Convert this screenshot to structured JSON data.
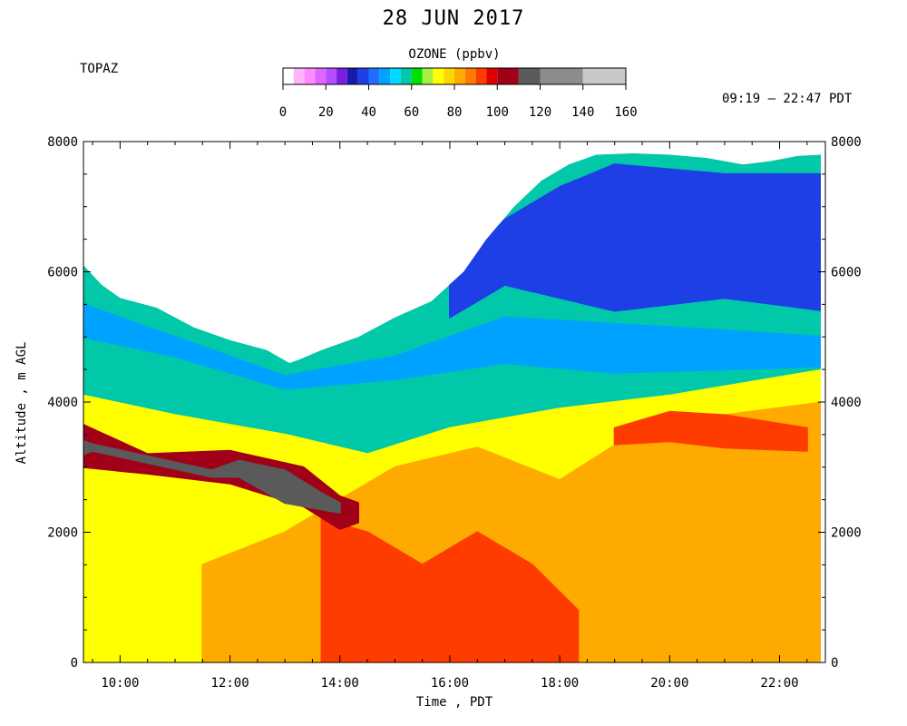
{
  "chart_data": {
    "type": "heatmap",
    "title": "28 JUN 2017",
    "station": "TOPAZ",
    "time_range": "09:19 – 22:47 PDT",
    "colorbar": {
      "title": "OZONE (ppbv)",
      "ticks": [
        0,
        20,
        40,
        60,
        80,
        100,
        120,
        140,
        160
      ],
      "bins": [
        {
          "from": 0,
          "to": 5,
          "color": "#ffffff"
        },
        {
          "from": 5,
          "to": 10,
          "color": "#ffb3ff"
        },
        {
          "from": 10,
          "to": 15,
          "color": "#ff8cff"
        },
        {
          "from": 15,
          "to": 20,
          "color": "#e066ff"
        },
        {
          "from": 20,
          "to": 25,
          "color": "#b34dff"
        },
        {
          "from": 25,
          "to": 30,
          "color": "#7a1fe0"
        },
        {
          "from": 30,
          "to": 35,
          "color": "#1a1aa8"
        },
        {
          "from": 35,
          "to": 40,
          "color": "#1f3fe6"
        },
        {
          "from": 40,
          "to": 45,
          "color": "#1f6fff"
        },
        {
          "from": 45,
          "to": 50,
          "color": "#00a2ff"
        },
        {
          "from": 50,
          "to": 55,
          "color": "#00d8ff"
        },
        {
          "from": 55,
          "to": 60,
          "color": "#00c8a8"
        },
        {
          "from": 60,
          "to": 65,
          "color": "#00e000"
        },
        {
          "from": 65,
          "to": 70,
          "color": "#a8f040"
        },
        {
          "from": 70,
          "to": 75,
          "color": "#ffff00"
        },
        {
          "from": 75,
          "to": 80,
          "color": "#ffd700"
        },
        {
          "from": 80,
          "to": 85,
          "color": "#ffaa00"
        },
        {
          "from": 85,
          "to": 90,
          "color": "#ff7a00"
        },
        {
          "from": 90,
          "to": 95,
          "color": "#ff3c00"
        },
        {
          "from": 95,
          "to": 100,
          "color": "#e00000"
        },
        {
          "from": 100,
          "to": 110,
          "color": "#a00018"
        },
        {
          "from": 110,
          "to": 120,
          "color": "#5a5a5a"
        },
        {
          "from": 120,
          "to": 140,
          "color": "#8c8c8c"
        },
        {
          "from": 140,
          "to": 160,
          "color": "#c8c8c8"
        }
      ]
    },
    "x": {
      "label": "Time , PDT",
      "range": [
        "09:20",
        "22:50"
      ],
      "tick_labels": [
        "10:00",
        "12:00",
        "14:00",
        "16:00",
        "18:00",
        "20:00",
        "22:00"
      ]
    },
    "y": {
      "label": "Altitude , m AGL",
      "range": [
        0,
        8000
      ],
      "tick_labels": [
        0,
        2000,
        4000,
        6000,
        8000
      ]
    },
    "data_top_altitude": [
      {
        "time": "09:20",
        "alt": 6100
      },
      {
        "time": "09:40",
        "alt": 5800
      },
      {
        "time": "10:00",
        "alt": 5600
      },
      {
        "time": "10:40",
        "alt": 5450
      },
      {
        "time": "11:20",
        "alt": 5150
      },
      {
        "time": "12:00",
        "alt": 4950
      },
      {
        "time": "12:40",
        "alt": 4800
      },
      {
        "time": "13:05",
        "alt": 4600
      },
      {
        "time": "13:15",
        "alt": 4650
      },
      {
        "time": "13:40",
        "alt": 4800
      },
      {
        "time": "14:20",
        "alt": 5000
      },
      {
        "time": "15:00",
        "alt": 5300
      },
      {
        "time": "15:40",
        "alt": 5550
      },
      {
        "time": "16:15",
        "alt": 6000
      },
      {
        "time": "16:40",
        "alt": 6500
      },
      {
        "time": "17:10",
        "alt": 7000
      },
      {
        "time": "17:40",
        "alt": 7400
      },
      {
        "time": "18:10",
        "alt": 7650
      },
      {
        "time": "18:40",
        "alt": 7800
      },
      {
        "time": "19:20",
        "alt": 7820
      },
      {
        "time": "20:00",
        "alt": 7800
      },
      {
        "time": "20:40",
        "alt": 7750
      },
      {
        "time": "21:20",
        "alt": 7650
      },
      {
        "time": "21:50",
        "alt": 7700
      },
      {
        "time": "22:20",
        "alt": 7780
      },
      {
        "time": "22:45",
        "alt": 7800
      }
    ],
    "layers": [
      {
        "ppbv": 47,
        "upper": [
          [
            "09:20",
            5500
          ],
          [
            "11:00",
            5000
          ],
          [
            "13:00",
            4400
          ],
          [
            "15:00",
            4700
          ],
          [
            "17:00",
            5300
          ],
          [
            "19:00",
            5200
          ],
          [
            "21:00",
            5100
          ],
          [
            "22:50",
            5000
          ]
        ],
        "lower": [
          [
            "09:20",
            5000
          ],
          [
            "11:00",
            4700
          ],
          [
            "13:00",
            4200
          ],
          [
            "15:00",
            4350
          ],
          [
            "17:00",
            4600
          ],
          [
            "19:00",
            4450
          ],
          [
            "21:00",
            4500
          ],
          [
            "22:50",
            4550
          ]
        ]
      },
      {
        "ppbv": 38,
        "upper": [
          [
            "16:00",
            5900
          ],
          [
            "17:00",
            6800
          ],
          [
            "18:00",
            7300
          ],
          [
            "19:00",
            7650
          ],
          [
            "21:00",
            7500
          ],
          [
            "22:50",
            7500
          ]
        ],
        "lower": [
          [
            "16:00",
            5300
          ],
          [
            "17:00",
            5800
          ],
          [
            "18:00",
            5600
          ],
          [
            "19:00",
            5400
          ],
          [
            "21:00",
            5600
          ],
          [
            "22:50",
            5400
          ]
        ]
      },
      {
        "ppbv": 72,
        "upper": [
          [
            "09:20",
            4100
          ],
          [
            "11:00",
            3800
          ],
          [
            "13:00",
            3500
          ],
          [
            "14:30",
            3200
          ],
          [
            "16:00",
            3600
          ],
          [
            "18:00",
            3900
          ],
          [
            "20:00",
            4100
          ],
          [
            "22:50",
            4500
          ]
        ],
        "lower": [
          [
            "09:20",
            0
          ],
          [
            "22:50",
            0
          ]
        ]
      },
      {
        "ppbv": 84,
        "upper": [
          [
            "11:30",
            1500
          ],
          [
            "13:00",
            2000
          ],
          [
            "14:00",
            2500
          ],
          [
            "15:00",
            3000
          ],
          [
            "16:30",
            3300
          ],
          [
            "18:00",
            2800
          ],
          [
            "19:30",
            3600
          ],
          [
            "21:00",
            3800
          ],
          [
            "22:50",
            4000
          ]
        ],
        "lower": [
          [
            "11:30",
            0
          ],
          [
            "22:50",
            0
          ]
        ]
      },
      {
        "ppbv": 90,
        "upper": [
          [
            "13:40",
            2200
          ],
          [
            "14:30",
            2000
          ],
          [
            "15:30",
            1500
          ],
          [
            "16:30",
            2000
          ],
          [
            "17:30",
            1500
          ],
          [
            "18:20",
            800
          ]
        ],
        "lower": [
          [
            "13:40",
            0
          ],
          [
            "18:20",
            0
          ]
        ]
      },
      {
        "ppbv": 92,
        "upper": [
          [
            "19:00",
            3600
          ],
          [
            "20:00",
            3850
          ],
          [
            "21:00",
            3800
          ],
          [
            "22:30",
            3600
          ]
        ],
        "lower": [
          [
            "19:00",
            3350
          ],
          [
            "20:00",
            3400
          ],
          [
            "21:00",
            3300
          ],
          [
            "22:30",
            3250
          ]
        ]
      },
      {
        "ppbv": 102,
        "upper": [
          [
            "09:20",
            3650
          ],
          [
            "10:30",
            3200
          ],
          [
            "12:00",
            3250
          ],
          [
            "13:20",
            3000
          ],
          [
            "14:00",
            2550
          ],
          [
            "14:20",
            2450
          ]
        ],
        "lower": [
          [
            "09:20",
            3000
          ],
          [
            "10:30",
            2900
          ],
          [
            "12:00",
            2750
          ],
          [
            "13:20",
            2400
          ],
          [
            "14:00",
            2050
          ],
          [
            "14:20",
            2150
          ]
        ]
      },
      {
        "ppbv": 112,
        "upper": [
          [
            "09:20",
            3400
          ],
          [
            "09:30",
            3350
          ],
          [
            "11:40",
            2950
          ],
          [
            "12:10",
            3100
          ],
          [
            "13:00",
            2950
          ],
          [
            "13:40",
            2600
          ],
          [
            "14:00",
            2450
          ]
        ],
        "lower": [
          [
            "09:20",
            3200
          ],
          [
            "09:30",
            3250
          ],
          [
            "11:40",
            2850
          ],
          [
            "12:10",
            2850
          ],
          [
            "13:00",
            2450
          ],
          [
            "13:40",
            2350
          ],
          [
            "14:00",
            2300
          ]
        ]
      }
    ]
  }
}
